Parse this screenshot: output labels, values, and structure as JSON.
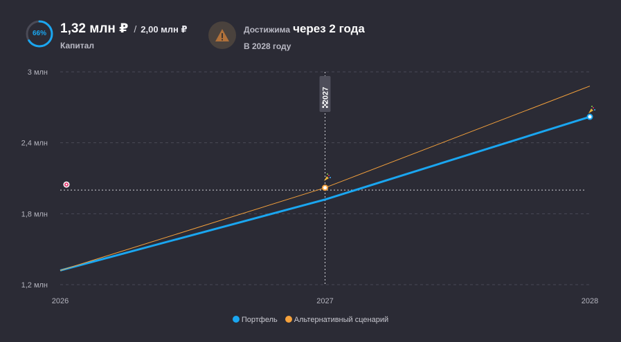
{
  "header": {
    "progress_label": "66%",
    "progress_fraction": 0.66,
    "capital_value": "1,32 млн ₽",
    "capital_separator": "/",
    "capital_target": "2,00 млн ₽",
    "capital_label": "Капитал",
    "reach_prefix": "Достижима",
    "reach_main": "через 2 года",
    "reach_sub": "В 2028 году",
    "warning_icon": "warning-triangle-icon"
  },
  "chart_data": {
    "type": "line",
    "x_ticks": [
      "2026",
      "2027",
      "2028"
    ],
    "y_ticks": [
      {
        "value": 1.2,
        "label": "1,2 млн"
      },
      {
        "value": 1.8,
        "label": "1,8 млн"
      },
      {
        "value": 2.4,
        "label": "2,4 млн"
      },
      {
        "value": 3.0,
        "label": "3 млн"
      }
    ],
    "ylim": [
      1.2,
      3.0
    ],
    "xlim": [
      2026,
      2028
    ],
    "goal_value": 2.0,
    "marker_x": 2027,
    "marker_label": "2027",
    "grid": true,
    "legend_position": "bottom",
    "series": [
      {
        "name": "Портфель",
        "color": "#1aa6f0",
        "x": [
          2026,
          2027,
          2028
        ],
        "values": [
          1.32,
          1.92,
          2.62
        ]
      },
      {
        "name": "Альтернативный сценарий",
        "color": "#f6a23c",
        "x": [
          2026,
          2027,
          2028
        ],
        "values": [
          1.32,
          2.02,
          2.88
        ]
      }
    ]
  }
}
